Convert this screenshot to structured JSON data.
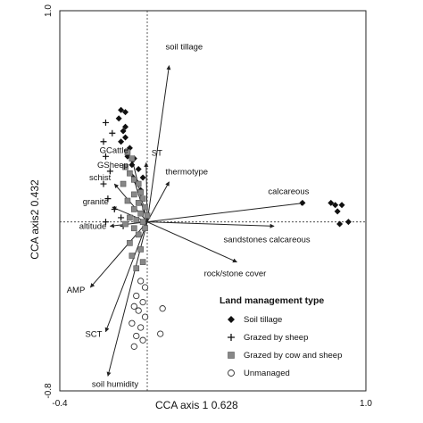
{
  "chart_data": {
    "type": "scatter",
    "title": "",
    "xlabel": "CCA axis 1  0.628",
    "ylabel": "CCA axis2  0.432",
    "xlim": [
      -0.4,
      1.0
    ],
    "ylim": [
      -0.8,
      1.0
    ],
    "x_tick_labels": [
      "-0.4",
      "1.0"
    ],
    "y_tick_labels": [
      "1.0",
      "-0.8"
    ],
    "origin_lines": "dashed",
    "legend": {
      "title": "Land management type",
      "placement": "bottom-right",
      "entries": [
        "Soil tillage",
        "Grazed by sheep",
        "Grazed by cow and sheep",
        "Unmanaged"
      ]
    },
    "vectors": [
      {
        "label": "soil tillage",
        "x": 0.1,
        "y": 0.74
      },
      {
        "label": "ST",
        "x": -0.005,
        "y": 0.28
      },
      {
        "label": "thermotype",
        "x": 0.1,
        "y": 0.19
      },
      {
        "label": "calcareous",
        "x": 0.72,
        "y": 0.09
      },
      {
        "label": "sandstones calcareous",
        "x": 0.58,
        "y": -0.02
      },
      {
        "label": "rock/stone cover",
        "x": 0.41,
        "y": -0.19
      },
      {
        "label": "GCattle",
        "x": -0.07,
        "y": 0.3
      },
      {
        "label": "GSheep",
        "x": -0.07,
        "y": 0.23
      },
      {
        "label": "schist",
        "x": -0.15,
        "y": 0.18
      },
      {
        "label": "granite",
        "x": -0.16,
        "y": 0.07
      },
      {
        "label": "altitude",
        "x": -0.17,
        "y": -0.02
      },
      {
        "label": "AMP",
        "x": -0.26,
        "y": -0.31
      },
      {
        "label": "SCT",
        "x": -0.19,
        "y": -0.52
      },
      {
        "label": "soil humidity",
        "x": -0.18,
        "y": -0.73
      }
    ],
    "series": [
      {
        "name": "Soil tillage",
        "marker": "diamond",
        "points": [
          [
            -0.12,
            0.53
          ],
          [
            -0.1,
            0.52
          ],
          [
            -0.13,
            0.49
          ],
          [
            -0.1,
            0.45
          ],
          [
            -0.11,
            0.43
          ],
          [
            -0.1,
            0.4
          ],
          [
            -0.12,
            0.38
          ],
          [
            -0.08,
            0.35
          ],
          [
            -0.09,
            0.31
          ],
          [
            -0.06,
            0.3
          ],
          [
            -0.07,
            0.27
          ],
          [
            -0.04,
            0.25
          ],
          [
            -0.02,
            0.21
          ],
          [
            -0.05,
            0.19
          ],
          [
            -0.03,
            0.15
          ],
          [
            0.71,
            0.09
          ],
          [
            0.84,
            0.09
          ],
          [
            0.86,
            0.08
          ],
          [
            0.89,
            0.08
          ],
          [
            0.87,
            0.05
          ],
          [
            0.92,
            0.0
          ],
          [
            0.88,
            -0.01
          ]
        ]
      },
      {
        "name": "Grazed by sheep",
        "marker": "plus",
        "points": [
          [
            -0.19,
            0.47
          ],
          [
            -0.16,
            0.42
          ],
          [
            -0.2,
            0.38
          ],
          [
            -0.19,
            0.31
          ],
          [
            -0.17,
            0.24
          ],
          [
            -0.2,
            0.18
          ],
          [
            -0.18,
            0.11
          ],
          [
            -0.15,
            0.06
          ],
          [
            -0.12,
            0.02
          ],
          [
            -0.19,
            0.0
          ],
          [
            -0.11,
            -0.02
          ]
        ]
      },
      {
        "name": "Grazed by cow and sheep",
        "marker": "square",
        "points": [
          [
            -0.09,
            0.33
          ],
          [
            -0.07,
            0.3
          ],
          [
            -0.1,
            0.26
          ],
          [
            -0.08,
            0.23
          ],
          [
            -0.06,
            0.2
          ],
          [
            -0.11,
            0.18
          ],
          [
            -0.04,
            0.18
          ],
          [
            -0.03,
            0.14
          ],
          [
            -0.06,
            0.13
          ],
          [
            -0.02,
            0.11
          ],
          [
            -0.09,
            0.1
          ],
          [
            -0.04,
            0.09
          ],
          [
            -0.01,
            0.07
          ],
          [
            -0.06,
            0.06
          ],
          [
            -0.03,
            0.04
          ],
          [
            0.0,
            0.03
          ],
          [
            -0.08,
            0.02
          ],
          [
            -0.05,
            0.01
          ],
          [
            -0.02,
            0.0
          ],
          [
            -0.1,
            -0.01
          ],
          [
            -0.06,
            -0.03
          ],
          [
            -0.01,
            -0.03
          ],
          [
            -0.04,
            -0.06
          ],
          [
            -0.08,
            -0.1
          ],
          [
            -0.03,
            -0.13
          ],
          [
            -0.07,
            -0.16
          ],
          [
            -0.05,
            -0.22
          ],
          [
            -0.02,
            -0.19
          ]
        ]
      },
      {
        "name": "Unmanaged",
        "marker": "circle",
        "points": [
          [
            -0.03,
            -0.28
          ],
          [
            -0.01,
            -0.31
          ],
          [
            -0.05,
            -0.35
          ],
          [
            -0.02,
            -0.38
          ],
          [
            -0.06,
            -0.4
          ],
          [
            -0.04,
            -0.42
          ],
          [
            -0.01,
            -0.45
          ],
          [
            -0.07,
            -0.48
          ],
          [
            -0.03,
            -0.5
          ],
          [
            -0.05,
            -0.54
          ],
          [
            -0.02,
            -0.56
          ],
          [
            -0.06,
            -0.59
          ],
          [
            0.07,
            -0.41
          ],
          [
            0.06,
            -0.53
          ]
        ]
      }
    ]
  }
}
